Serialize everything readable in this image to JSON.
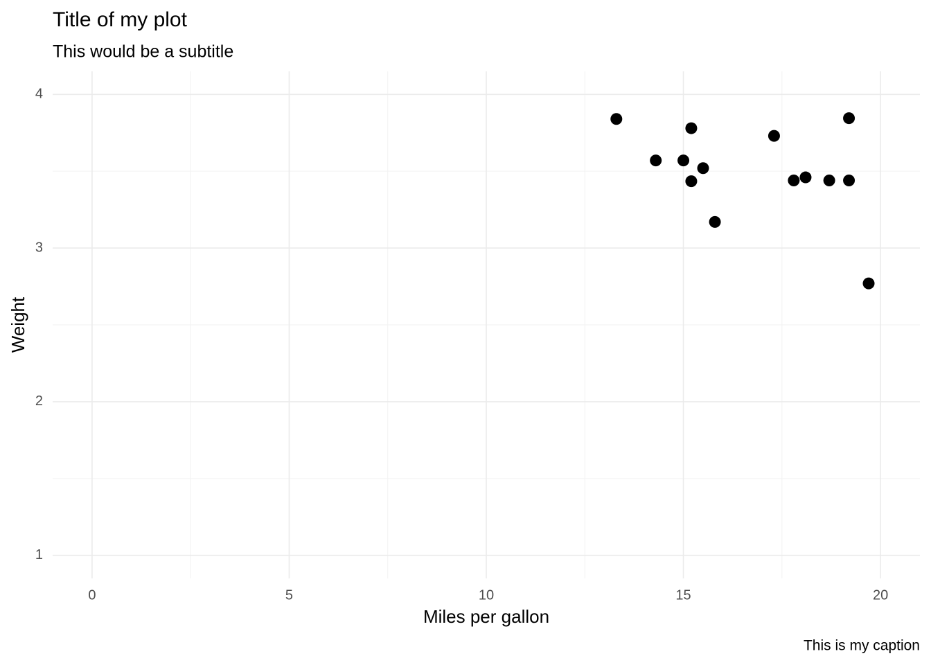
{
  "chart_data": {
    "type": "scatter",
    "title": "Title of my plot",
    "subtitle": "This would be a subtitle",
    "caption": "This is my caption",
    "x_label": "Miles per gallon",
    "y_label": "Weight",
    "x": [
      13.3,
      14.3,
      15.0,
      15.2,
      15.2,
      15.5,
      15.8,
      17.3,
      17.8,
      18.1,
      18.7,
      19.2,
      19.2,
      19.7
    ],
    "y": [
      3.84,
      3.57,
      3.57,
      3.78,
      3.435,
      3.52,
      3.17,
      3.73,
      3.44,
      3.46,
      3.44,
      3.845,
      3.44,
      2.77
    ],
    "color": "#000000",
    "xlim": [
      -1,
      21
    ],
    "ylim": [
      0.85,
      4.15
    ],
    "xticks": [
      0,
      5,
      10,
      15,
      20
    ],
    "yticks": [
      1,
      2,
      3,
      4
    ],
    "xticks_minor": [
      2.5,
      7.5,
      12.5,
      17.5
    ],
    "yticks_minor": [
      1.5,
      2.5,
      3.5
    ],
    "grid": true
  }
}
